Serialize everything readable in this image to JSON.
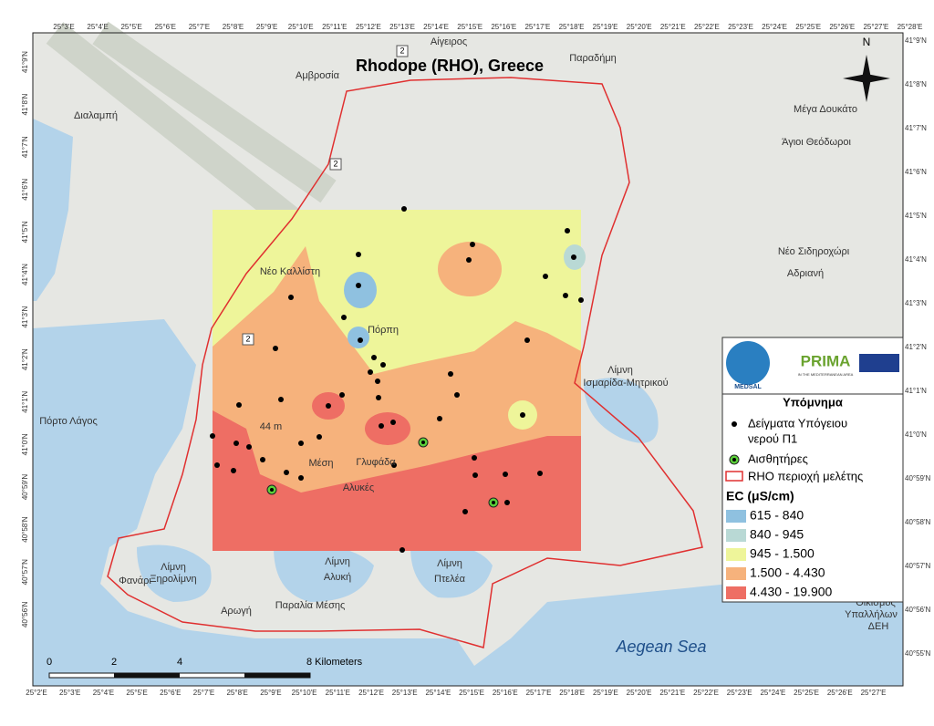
{
  "map": {
    "title": "Rhodope (RHO), Greece",
    "north": "N",
    "graticule": {
      "top": [
        "25°3'E",
        "25°4'E",
        "25°5'E",
        "25°6'E",
        "25°7'E",
        "25°8'E",
        "25°9'E",
        "25°10'E",
        "25°11'E",
        "25°12'E",
        "25°13'E",
        "25°14'E",
        "25°15'E",
        "25°16'E",
        "25°17'E",
        "25°18'E",
        "25°19'E",
        "25°20'E",
        "25°21'E",
        "25°22'E",
        "25°23'E",
        "25°24'E",
        "25°25'E",
        "25°26'E",
        "25°27'E",
        "25°28'E"
      ],
      "bottom": [
        "25°2'E",
        "25°3'E",
        "25°4'E",
        "25°5'E",
        "25°6'E",
        "25°7'E",
        "25°8'E",
        "25°9'E",
        "25°10'E",
        "25°11'E",
        "25°12'E",
        "25°13'E",
        "25°14'E",
        "25°15'E",
        "25°16'E",
        "25°17'E",
        "25°18'E",
        "25°19'E",
        "25°20'E",
        "25°21'E",
        "25°22'E",
        "25°23'E",
        "25°24'E",
        "25°25'E",
        "25°26'E",
        "25°27'E"
      ],
      "left": [
        "41°9'N",
        "41°8'N",
        "41°7'N",
        "41°6'N",
        "41°5'N",
        "41°4'N",
        "41°3'N",
        "41°2'N",
        "41°1'N",
        "41°0'N",
        "40°59'N",
        "40°58'N",
        "40°57'N",
        "40°56'N"
      ],
      "right": [
        "41°9'N",
        "41°8'N",
        "41°7'N",
        "41°6'N",
        "41°5'N",
        "41°4'N",
        "41°3'N",
        "41°2'N",
        "41°1'N",
        "41°0'N",
        "40°59'N",
        "40°58'N",
        "40°57'N",
        "40°56'N",
        "40°55'N"
      ]
    },
    "places": [
      "Αίγειρος",
      "Παραδήμη",
      "Αμβροσία",
      "Διαλαμπή",
      "Μέγα Δουκάτο",
      "Άγιοι Θεόδωροι",
      "Νέο Σιδηροχώρι",
      "Αδριανή",
      "Νέο Καλλίστη",
      "Πόρπη",
      "Λίμνη",
      "Ισμαρίδα-Μητρικού",
      "Πόρτο Λάγος",
      "Μέση",
      "Γλυφάδα",
      "Αλυκές",
      "Λίμνη",
      "Ξηρολίμνη",
      "Λίμνη",
      "Αλυκή",
      "Λίμνη",
      "Πτελέα",
      "Παραλία Μέσης",
      "Αρωγή",
      "Φανάρι",
      "Οικισμός",
      "Υπαλλήλων",
      "ΔΕΗ",
      "44 m",
      "2",
      "2",
      "2"
    ],
    "sea": "Aegean Sea",
    "scale": [
      "0",
      "2",
      "4",
      "8 Kilometers"
    ],
    "logos": {
      "medsal": "MEDSAL",
      "prima": "PRIMA",
      "prima_sub": "IN THE MEDITERRANEAN AREA"
    },
    "legend": {
      "title": "Υπόμνημα",
      "samples": [
        "Δείγματα Υπόγειου",
        "νερού Π1"
      ],
      "sensors": "Αισθητήρες",
      "area": "RHO περιοχή μελέτης",
      "ec_title": "EC (μS/cm)",
      "classes": [
        {
          "label": "615 - 840",
          "color": "#8fc1e0"
        },
        {
          "label": "840 - 945",
          "color": "#b9d9d5"
        },
        {
          "label": "945 - 1.500",
          "color": "#eef59a"
        },
        {
          "label": "1.500 - 4.430",
          "color": "#f6b27c"
        },
        {
          "label": "4.430 - 19.900",
          "color": "#ee6e64"
        }
      ]
    }
  }
}
